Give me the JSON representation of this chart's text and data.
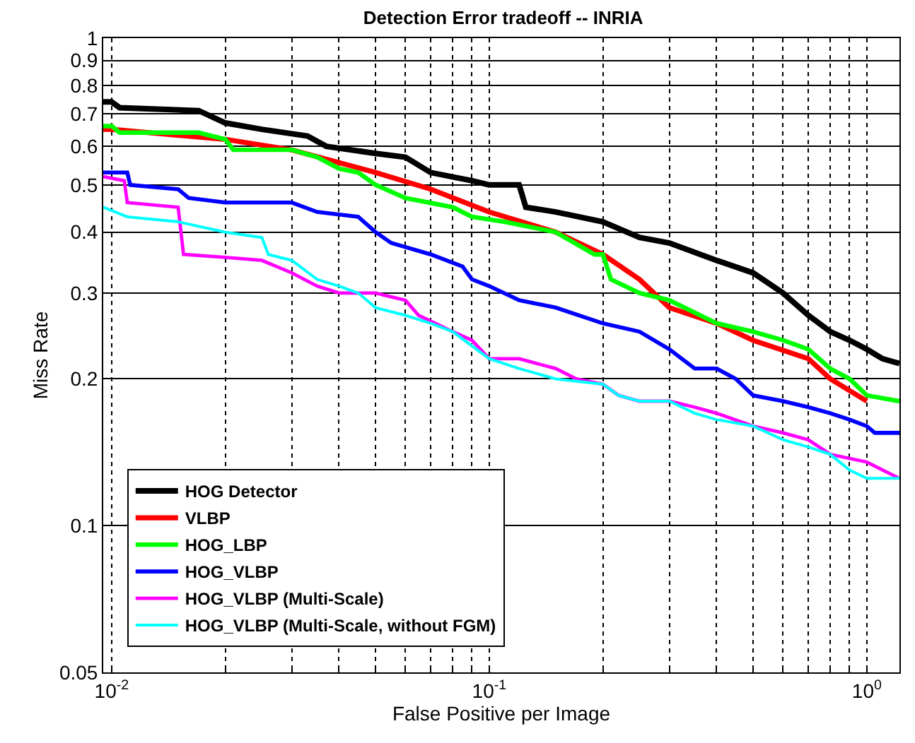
{
  "chart_data": {
    "type": "line",
    "title": "Detection Error tradeoff -- INRIA",
    "xlabel": "False Positive per Image",
    "ylabel": "Miss Rate",
    "log": "xy",
    "grid": true,
    "legend": "bottom left",
    "line_style": "solid",
    "marker": "none",
    "xlim": [
      0.0095,
      1.22
    ],
    "ylim": [
      0.05,
      1
    ],
    "xticks": [
      {
        "value": 0.01,
        "label": "10$^{-2}$"
      },
      {
        "value": 0.02,
        "label": null
      },
      {
        "value": 0.03,
        "label": null
      },
      {
        "value": 0.04,
        "label": null
      },
      {
        "value": 0.05,
        "label": null
      },
      {
        "value": 0.06,
        "label": null
      },
      {
        "value": 0.07,
        "label": null
      },
      {
        "value": 0.08,
        "label": null
      },
      {
        "value": 0.09,
        "label": null
      },
      {
        "value": 0.1,
        "label": "10$^{-1}$"
      },
      {
        "value": 0.2,
        "label": null
      },
      {
        "value": 0.3,
        "label": null
      },
      {
        "value": 0.4,
        "label": null
      },
      {
        "value": 0.5,
        "label": null
      },
      {
        "value": 0.6,
        "label": null
      },
      {
        "value": 0.7,
        "label": null
      },
      {
        "value": 0.8,
        "label": null
      },
      {
        "value": 0.9,
        "label": null
      },
      {
        "value": 1,
        "label": "10$^{0}$"
      }
    ],
    "yticks": [
      0.05,
      0.1,
      0.2,
      0.3,
      0.4,
      0.5,
      0.6,
      0.7,
      0.8,
      0.9,
      1
    ],
    "series": [
      {
        "name": "HOG Detector",
        "color": "#000000",
        "x": [
          0.0095,
          0.01,
          0.0105,
          0.017,
          0.02,
          0.025,
          0.033,
          0.037,
          0.05,
          0.06,
          0.07,
          0.09,
          0.1,
          0.12,
          0.125,
          0.15,
          0.2,
          0.25,
          0.3,
          0.4,
          0.5,
          0.6,
          0.7,
          0.8,
          0.9,
          1.0,
          1.1,
          1.22
        ],
        "values": [
          0.74,
          0.74,
          0.72,
          0.71,
          0.67,
          0.65,
          0.63,
          0.6,
          0.58,
          0.57,
          0.53,
          0.51,
          0.5,
          0.5,
          0.45,
          0.44,
          0.42,
          0.39,
          0.38,
          0.35,
          0.33,
          0.3,
          0.27,
          0.25,
          0.24,
          0.23,
          0.22,
          0.215
        ]
      },
      {
        "name": "VLBP",
        "color": "#ff0000",
        "x": [
          0.0095,
          0.01,
          0.02,
          0.03,
          0.05,
          0.07,
          0.1,
          0.15,
          0.2,
          0.25,
          0.3,
          0.4,
          0.5,
          0.7,
          0.8,
          1.0
        ],
        "values": [
          0.65,
          0.65,
          0.62,
          0.59,
          0.53,
          0.49,
          0.44,
          0.4,
          0.36,
          0.32,
          0.28,
          0.26,
          0.24,
          0.22,
          0.2,
          0.18
        ]
      },
      {
        "name": "HOG_LBP",
        "color": "#00ff00",
        "x": [
          0.0095,
          0.01,
          0.0105,
          0.017,
          0.02,
          0.021,
          0.03,
          0.035,
          0.04,
          0.045,
          0.05,
          0.06,
          0.08,
          0.09,
          0.11,
          0.15,
          0.19,
          0.2,
          0.21,
          0.25,
          0.3,
          0.4,
          0.5,
          0.6,
          0.7,
          0.8,
          0.9,
          1.0,
          1.22
        ],
        "values": [
          0.66,
          0.66,
          0.64,
          0.64,
          0.62,
          0.59,
          0.59,
          0.57,
          0.54,
          0.53,
          0.5,
          0.47,
          0.45,
          0.43,
          0.42,
          0.4,
          0.36,
          0.36,
          0.32,
          0.3,
          0.29,
          0.26,
          0.25,
          0.24,
          0.23,
          0.21,
          0.2,
          0.185,
          0.18
        ]
      },
      {
        "name": "HOG_VLBP",
        "color": "#0000ff",
        "x": [
          0.0095,
          0.011,
          0.0112,
          0.015,
          0.016,
          0.02,
          0.03,
          0.035,
          0.045,
          0.05,
          0.055,
          0.07,
          0.085,
          0.09,
          0.1,
          0.12,
          0.15,
          0.2,
          0.25,
          0.3,
          0.35,
          0.4,
          0.45,
          0.5,
          0.6,
          0.7,
          0.8,
          0.9,
          1.0,
          1.05,
          1.22
        ],
        "values": [
          0.53,
          0.53,
          0.5,
          0.49,
          0.47,
          0.46,
          0.46,
          0.44,
          0.43,
          0.4,
          0.38,
          0.36,
          0.34,
          0.32,
          0.31,
          0.29,
          0.28,
          0.26,
          0.25,
          0.23,
          0.21,
          0.21,
          0.2,
          0.185,
          0.18,
          0.175,
          0.17,
          0.165,
          0.16,
          0.155,
          0.155
        ]
      },
      {
        "name": "HOG_VLBP (Multi-Scale)",
        "color": "#ff00ff",
        "x": [
          0.0095,
          0.0108,
          0.011,
          0.015,
          0.0155,
          0.02,
          0.025,
          0.03,
          0.035,
          0.04,
          0.05,
          0.06,
          0.065,
          0.08,
          0.09,
          0.1,
          0.12,
          0.15,
          0.17,
          0.2,
          0.22,
          0.25,
          0.3,
          0.35,
          0.4,
          0.5,
          0.6,
          0.7,
          0.8,
          1.0,
          1.22
        ],
        "values": [
          0.52,
          0.51,
          0.46,
          0.45,
          0.36,
          0.355,
          0.35,
          0.33,
          0.31,
          0.3,
          0.3,
          0.29,
          0.27,
          0.25,
          0.24,
          0.22,
          0.22,
          0.21,
          0.2,
          0.195,
          0.185,
          0.18,
          0.18,
          0.175,
          0.17,
          0.16,
          0.155,
          0.15,
          0.14,
          0.135,
          0.125
        ]
      },
      {
        "name": "HOG_VLBP (Multi-Scale, without FGM)",
        "color": "#00ffff",
        "x": [
          0.0095,
          0.011,
          0.015,
          0.02,
          0.025,
          0.026,
          0.03,
          0.035,
          0.04,
          0.045,
          0.05,
          0.06,
          0.07,
          0.08,
          0.1,
          0.12,
          0.15,
          0.2,
          0.22,
          0.25,
          0.3,
          0.35,
          0.4,
          0.5,
          0.6,
          0.7,
          0.8,
          0.9,
          1.0,
          1.22
        ],
        "values": [
          0.45,
          0.43,
          0.42,
          0.4,
          0.39,
          0.36,
          0.35,
          0.32,
          0.31,
          0.3,
          0.28,
          0.27,
          0.26,
          0.25,
          0.22,
          0.21,
          0.2,
          0.195,
          0.185,
          0.18,
          0.18,
          0.17,
          0.165,
          0.16,
          0.15,
          0.145,
          0.14,
          0.13,
          0.125,
          0.125
        ]
      }
    ]
  }
}
